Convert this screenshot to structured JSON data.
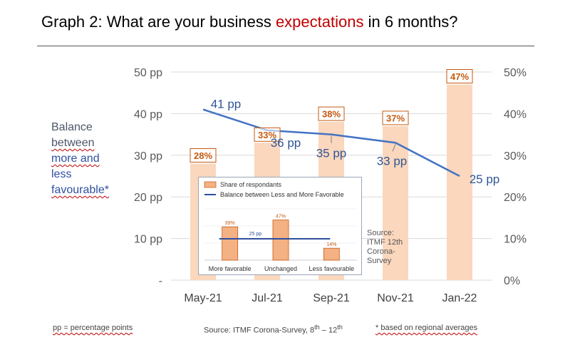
{
  "title": {
    "prefix": "Graph 2: What are your business ",
    "highlight": "expectations",
    "suffix": " in 6 months?"
  },
  "y_axis_label": [
    "Balance",
    "between",
    "more and",
    "less",
    "favourable*"
  ],
  "footer": {
    "left": "pp = percentage points",
    "middle_prefix": "Source: ITMF Corona-Survey, 8",
    "middle_sup1": "th",
    "middle_mid": " – 12",
    "middle_sup2": "th",
    "right": "* based on regional averages"
  },
  "colors": {
    "bar": "#fad7bd",
    "bar_label_border": "#c55a11",
    "bar_label_text": "#c55a11",
    "line": "#4472c4",
    "line_label": "#2f5597",
    "axis_text": "#595959",
    "grid": "#d9d9d9",
    "highlight": "#c00000"
  },
  "chart_data": [
    {
      "type": "bar+line",
      "categories": [
        "May-21",
        "Jul-21",
        "Sep-21",
        "Nov-21",
        "Jan-22"
      ],
      "series": [
        {
          "kind": "bar",
          "axis": "right",
          "values": [
            28,
            33,
            38,
            37,
            47
          ],
          "labels": [
            "28%",
            "33%",
            "38%",
            "37%",
            "47%"
          ]
        },
        {
          "kind": "line",
          "axis": "left",
          "values": [
            41,
            36,
            35,
            33,
            25
          ],
          "labels": [
            "41 pp",
            "36 pp",
            "35 pp",
            "33 pp",
            "25 pp"
          ]
        }
      ],
      "left_axis": {
        "ylim": [
          0,
          50
        ],
        "ticks": [
          "-",
          "10 pp",
          "20 pp",
          "30 pp",
          "40 pp",
          "50 pp"
        ]
      },
      "right_axis": {
        "ylim": [
          0,
          50
        ],
        "ticks": [
          "0%",
          "10%",
          "20%",
          "30%",
          "40%",
          "50%"
        ]
      },
      "grid": true
    },
    {
      "type": "bar+line",
      "categories": [
        "More favorable",
        "Unchanged",
        "Less favourable"
      ],
      "series": [
        {
          "name": "Share of respondants",
          "kind": "bar",
          "values": [
            39,
            47,
            14
          ],
          "labels": [
            "39%",
            "47%",
            "14%"
          ]
        },
        {
          "name": "Balance between Less and More Favorable",
          "kind": "line",
          "values": [
            25,
            25,
            25
          ],
          "labels": [
            "25 pp"
          ]
        }
      ],
      "ylim": [
        0,
        60
      ],
      "source": [
        "Source:",
        "ITMF 12th",
        "Corona-",
        "Survey"
      ]
    }
  ]
}
